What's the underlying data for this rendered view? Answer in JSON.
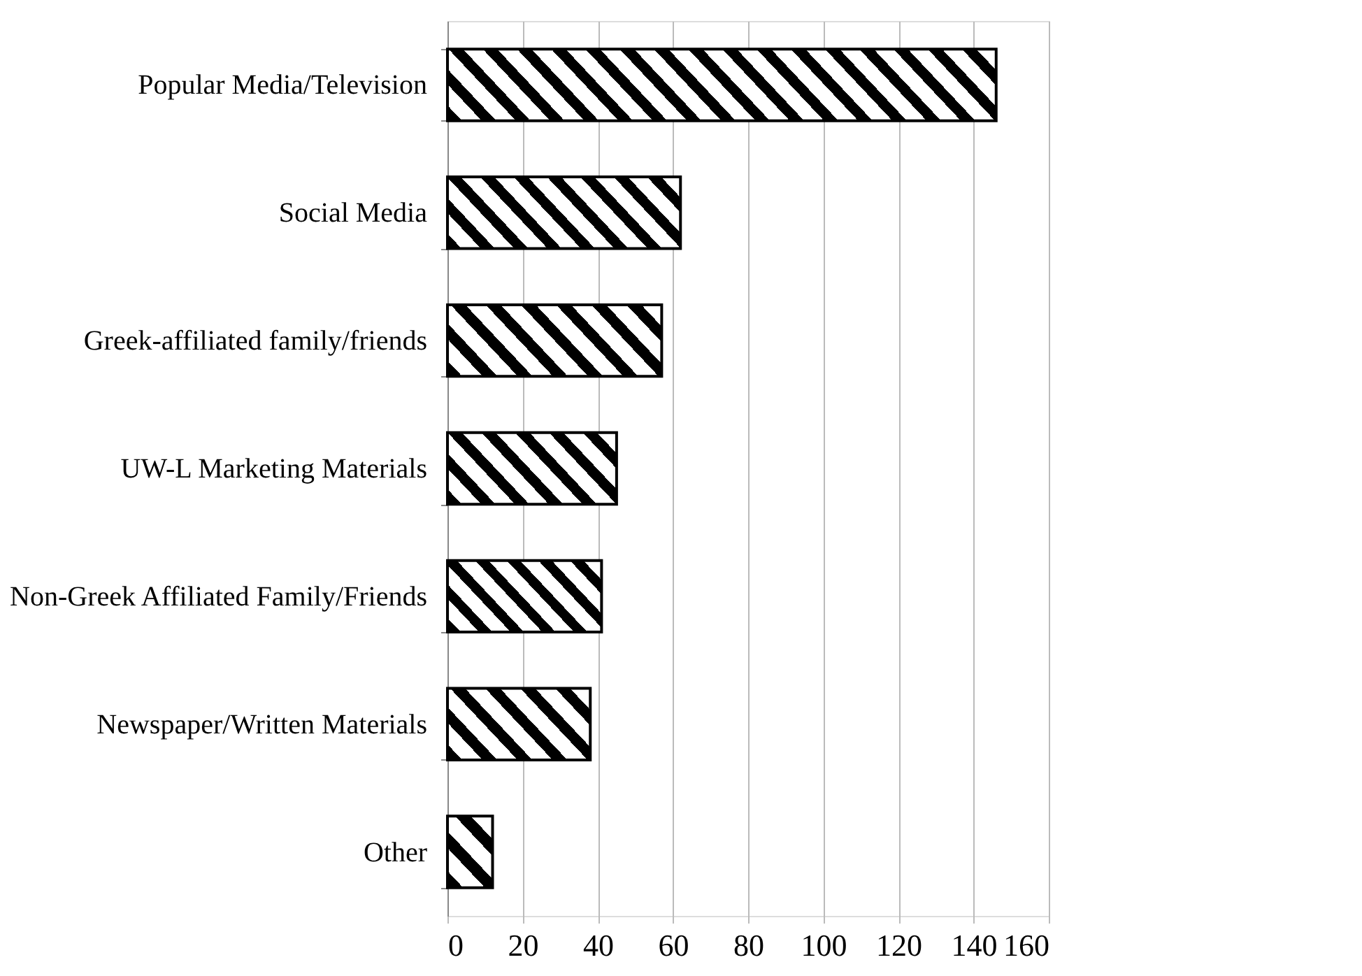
{
  "chart_data": {
    "type": "bar",
    "orientation": "horizontal",
    "categories": [
      "Popular Media/Television",
      "Social Media",
      "Greek-affiliated family/friends",
      "UW-L Marketing Materials",
      "Non-Greek Affiliated Family/Friends",
      "Newspaper/Written Materials",
      "Other"
    ],
    "values": [
      146,
      62,
      57,
      45,
      41,
      38,
      12
    ],
    "color": "#000000",
    "xlim": [
      0,
      160
    ],
    "xticks": [
      0,
      20,
      40,
      60,
      80,
      100,
      120,
      140,
      160
    ],
    "grid": "x"
  }
}
